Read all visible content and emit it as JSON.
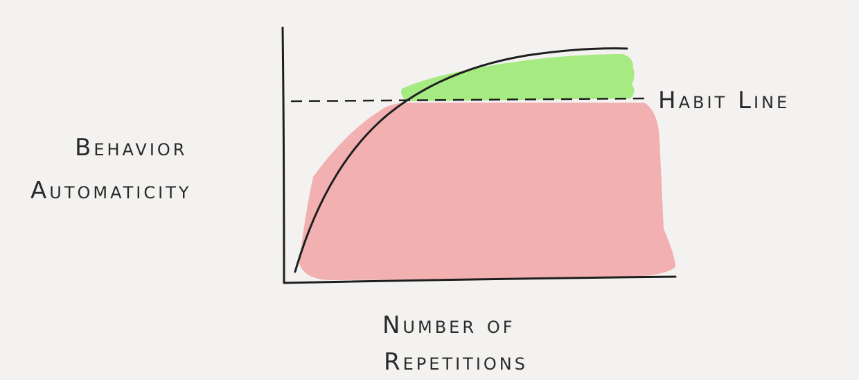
{
  "diagram": {
    "y_axis_label_line1": "Behavior",
    "y_axis_label_line2": "Automaticity",
    "x_axis_label_line1": "Number of",
    "x_axis_label_line2": "Repetitions",
    "threshold_label": "Habit Line"
  },
  "colors": {
    "background": "#f3f2f0",
    "below_habit_fill": "#f2b0b0",
    "above_habit_fill": "#a6ea82",
    "ink": "#1e1e1e"
  }
}
